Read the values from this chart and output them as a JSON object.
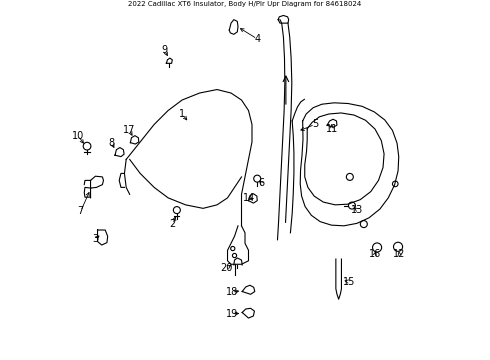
{
  "title": "2022 Cadillac XT6 Insulator, Body H/Plr Upr Diagram for 84618024",
  "bg_color": "#ffffff",
  "line_color": "#000000",
  "label_color": "#000000",
  "font_size": 7
}
